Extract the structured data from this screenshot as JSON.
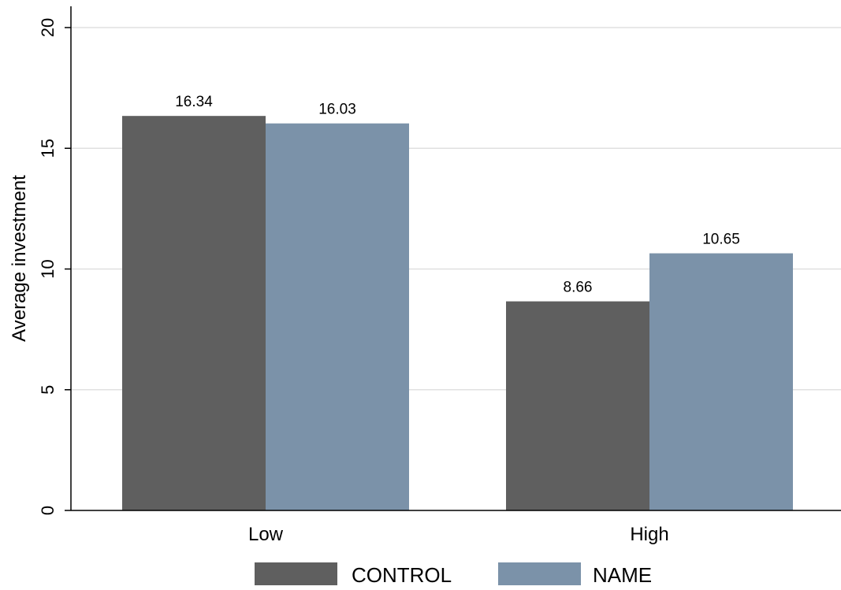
{
  "chart_data": {
    "type": "bar",
    "categories": [
      "Low",
      "High"
    ],
    "series": [
      {
        "name": "CONTROL",
        "values": [
          16.34,
          8.66
        ],
        "color": "#5f5f5f"
      },
      {
        "name": "NAME",
        "values": [
          16.03,
          10.65
        ],
        "color": "#7b92a9"
      }
    ],
    "data_labels": [
      [
        "16.34",
        "8.66"
      ],
      [
        "16.03",
        "10.65"
      ]
    ],
    "title": "",
    "xlabel": "",
    "ylabel": "Average investment",
    "ylim": [
      0,
      20
    ],
    "yticks": [
      0,
      5,
      10,
      15,
      20
    ],
    "ytick_labels": [
      "0",
      "5",
      "10",
      "15",
      "20"
    ],
    "grid": true,
    "legend": "bottom-center",
    "colors": {
      "gridline": "#e0e0e0",
      "axis": "#000000",
      "background": "#ffffff"
    }
  }
}
